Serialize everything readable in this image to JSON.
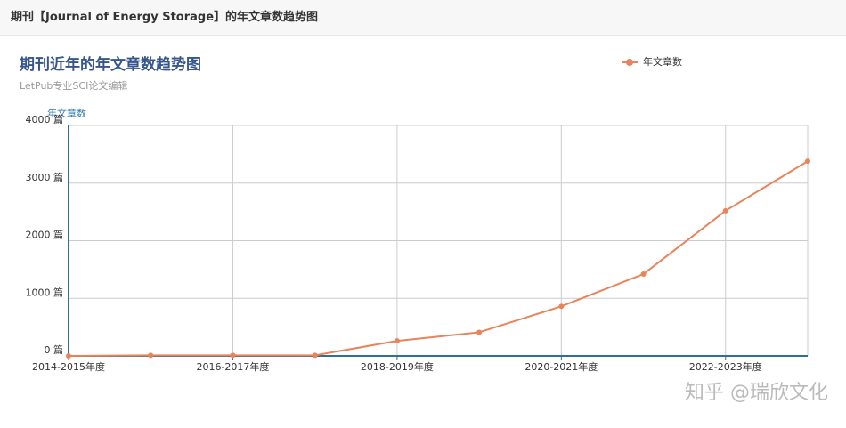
{
  "header": {
    "title": "期刊【Journal of Energy Storage】的年文章数趋势图"
  },
  "chart_data": {
    "type": "line",
    "title": "期刊近年的年文章数趋势图",
    "subtitle": "LetPub专业SCI论文编辑",
    "y_axis_label": "年文章数",
    "categories": [
      "2014-2015年度",
      null,
      "2016-2017年度",
      null,
      "2018-2019年度",
      null,
      "2020-2021年度",
      null,
      "2022-2023年度",
      null
    ],
    "series": [
      {
        "name": "年文章数",
        "color": "#e8835a",
        "values": [
          0,
          10,
          10,
          10,
          260,
          410,
          860,
          1420,
          2520,
          3380
        ]
      }
    ],
    "ylim": [
      0,
      4000
    ],
    "yticks": [
      {
        "value": 0,
        "label": "0 篇"
      },
      {
        "value": 1000,
        "label": "1000 篇"
      },
      {
        "value": 2000,
        "label": "2000 篇"
      },
      {
        "value": 3000,
        "label": "3000 篇"
      },
      {
        "value": 4000,
        "label": "4000 篇"
      }
    ],
    "grid": true,
    "legend": "top-right"
  },
  "watermark": "知乎 @瑞欣文化"
}
